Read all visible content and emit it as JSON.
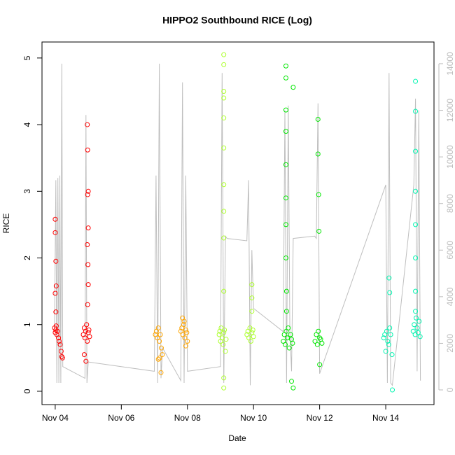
{
  "chart_data": {
    "type": "scatter",
    "title": "HIPPO2 Southbound RICE (Log)",
    "xlabel": "Date",
    "ylabel": "RICE",
    "xlim": [
      3.6,
      15.46
    ],
    "xticks": [
      {
        "value": 4,
        "label": "Nov 04"
      },
      {
        "value": 6,
        "label": "Nov 06"
      },
      {
        "value": 8,
        "label": "Nov 08"
      },
      {
        "value": 10,
        "label": "Nov 10"
      },
      {
        "value": 12,
        "label": "Nov 12"
      },
      {
        "value": 14,
        "label": "Nov 14"
      }
    ],
    "ylim": [
      -0.2,
      5.24
    ],
    "yticks": [
      0,
      1,
      2,
      3,
      4,
      5
    ],
    "y2lim": [
      -630,
      14930
    ],
    "y2ticks": [
      0,
      2000,
      4000,
      6000,
      8000,
      10000,
      12000,
      14000
    ],
    "y2_color": "#bbbbbb",
    "series": [
      {
        "color": "#bebebe",
        "axis": "y2",
        "line": true,
        "x": [
          3.98,
          4.02,
          4.05,
          4.08,
          4.11,
          4.14,
          4.17,
          4.2,
          4.23,
          4.9,
          4.93,
          4.96,
          5.0,
          7.0,
          7.05,
          7.1,
          7.15,
          7.2,
          7.25,
          7.8,
          7.85,
          7.9,
          7.95,
          8.0,
          9.0,
          9.05,
          9.1,
          9.15,
          9.2,
          9.8,
          9.85,
          9.9,
          9.95,
          10.0,
          10.9,
          10.95,
          11.0,
          11.05,
          11.1,
          11.15,
          11.2,
          11.85,
          11.9,
          11.95,
          12.0,
          14.0,
          14.05,
          14.1,
          14.15,
          14.2,
          14.85,
          14.9,
          14.95,
          15.0,
          15.05
        ],
        "values": [
          2600,
          9000,
          300,
          9100,
          300,
          9200,
          300,
          14000,
          1000,
          500,
          11800,
          300,
          1200,
          800,
          9200,
          300,
          14000,
          500,
          1800,
          400,
          13200,
          300,
          9200,
          800,
          1000,
          13600,
          300,
          6600,
          6500,
          6400,
          9000,
          200,
          6000,
          3500,
          2500,
          12000,
          300,
          12200,
          2500,
          800,
          6500,
          6600,
          6500,
          12300,
          700,
          8800,
          300,
          13600,
          300,
          200,
          8800,
          12500,
          800,
          12000,
          400
        ]
      },
      {
        "color": "#ff0000",
        "x": [
          3.98,
          4.0,
          4.02,
          4.03,
          4.05,
          4.07,
          4.1,
          4.12,
          4.15,
          4.18,
          4.2,
          4.22,
          4.0,
          4.0,
          4.02,
          4.03,
          4.0,
          4.02,
          4.85,
          4.88,
          4.9,
          4.92,
          4.95,
          4.97,
          5.0,
          5.02,
          5.04,
          4.97,
          4.98,
          5.0,
          4.98,
          5.0,
          4.97,
          4.99,
          5.0,
          4.98,
          4.88,
          4.93
        ],
        "values": [
          0.95,
          0.88,
          0.92,
          0.98,
          0.85,
          0.9,
          0.8,
          0.75,
          0.7,
          0.6,
          0.52,
          0.5,
          2.58,
          2.38,
          1.95,
          1.58,
          1.47,
          1.19,
          0.85,
          0.95,
          0.8,
          0.9,
          1.0,
          0.75,
          0.88,
          0.92,
          0.82,
          4.0,
          3.62,
          3.0,
          2.95,
          2.45,
          2.2,
          1.9,
          1.6,
          1.3,
          0.55,
          0.45
        ]
      },
      {
        "color": "#ffa500",
        "x": [
          7.03,
          7.06,
          7.09,
          7.12,
          7.15,
          7.18,
          7.21,
          7.24,
          7.12,
          7.16,
          7.2,
          7.8,
          7.83,
          7.86,
          7.89,
          7.92,
          7.95,
          7.98,
          8.0,
          7.85,
          7.9,
          7.95
        ],
        "values": [
          0.85,
          0.9,
          0.8,
          0.95,
          0.75,
          0.85,
          0.65,
          0.55,
          0.48,
          0.5,
          0.28,
          0.9,
          0.95,
          0.85,
          1.0,
          0.8,
          0.92,
          0.88,
          0.75,
          1.1,
          1.05,
          0.68
        ]
      },
      {
        "color": "#adff2f",
        "x": [
          8.96,
          8.98,
          9.0,
          9.02,
          9.05,
          9.08,
          9.1,
          9.12,
          9.15,
          9.17,
          9.1,
          9.1,
          9.1,
          9.1,
          9.1,
          9.1,
          9.1,
          9.1,
          9.1,
          9.1,
          9.1,
          9.1,
          9.8,
          9.83,
          9.86,
          9.89,
          9.92,
          9.95,
          9.98,
          10.0,
          9.95,
          9.95,
          9.95
        ],
        "values": [
          0.85,
          0.9,
          0.75,
          0.95,
          0.8,
          0.7,
          0.88,
          0.92,
          0.6,
          0.78,
          5.05,
          4.9,
          4.5,
          4.4,
          4.1,
          3.65,
          3.1,
          2.7,
          2.3,
          1.5,
          0.2,
          0.05,
          0.85,
          0.9,
          0.8,
          0.95,
          0.75,
          0.88,
          0.92,
          0.82,
          1.2,
          1.4,
          1.6
        ]
      },
      {
        "color": "#00e600",
        "x": [
          10.9,
          10.93,
          10.96,
          10.99,
          11.02,
          11.05,
          11.08,
          11.12,
          11.15,
          11.18,
          10.98,
          10.98,
          10.98,
          10.98,
          10.98,
          10.98,
          10.98,
          10.98,
          11.0,
          11.0,
          11.2,
          11.15,
          11.2,
          11.86,
          11.9,
          11.93,
          11.96,
          12.0,
          12.03,
          12.07,
          11.95,
          11.95,
          11.97,
          11.98,
          12.0
        ],
        "values": [
          0.75,
          0.85,
          0.7,
          0.9,
          0.8,
          0.95,
          0.65,
          0.85,
          0.78,
          0.72,
          4.88,
          4.7,
          4.22,
          3.9,
          3.4,
          2.9,
          2.5,
          2.0,
          1.5,
          1.2,
          4.56,
          0.15,
          0.05,
          0.75,
          0.85,
          0.7,
          0.9,
          0.8,
          0.78,
          0.72,
          4.08,
          3.56,
          2.95,
          2.4,
          0.4
        ]
      },
      {
        "color": "#00f5b0",
        "x": [
          13.94,
          13.97,
          14.0,
          14.03,
          14.06,
          14.09,
          14.12,
          14.15,
          14.19,
          14.1,
          14.12,
          14.2,
          14.83,
          14.86,
          14.89,
          14.92,
          14.95,
          14.98,
          15.01,
          15.04,
          14.9,
          14.9,
          14.9,
          14.9,
          14.9,
          14.9,
          14.9,
          14.9
        ],
        "values": [
          0.8,
          0.85,
          0.6,
          0.9,
          0.75,
          0.7,
          0.95,
          0.85,
          0.55,
          1.7,
          1.48,
          0.02,
          0.9,
          1.0,
          0.85,
          1.1,
          0.95,
          0.88,
          1.05,
          0.82,
          4.65,
          4.2,
          3.6,
          3.0,
          2.5,
          2.0,
          1.5,
          1.2
        ]
      }
    ]
  }
}
